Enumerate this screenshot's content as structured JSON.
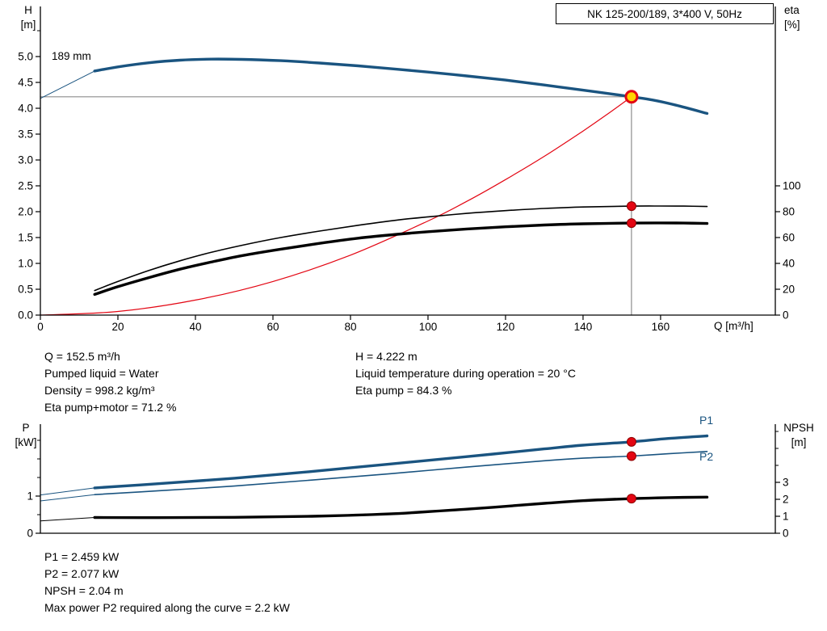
{
  "header": {
    "title": "NK 125-200/189, 3*400 V, 50Hz"
  },
  "labels": {
    "h_title": [
      "H",
      "[m]"
    ],
    "eta_title": [
      "eta",
      "[%]"
    ],
    "q_axis": "Q [m³/h]",
    "p_title": [
      "P",
      "[kW]"
    ],
    "npsh_title": [
      "NPSH",
      "[m]"
    ],
    "impeller": "189 mm",
    "p1": "P1",
    "p2": "P2"
  },
  "info": {
    "col_left": [
      "Q = 152.5 m³/h",
      "Pumped liquid = Water",
      "Density = 998.2 kg/m³",
      "Eta pump+motor = 71.2 %"
    ],
    "col_right": [
      "H = 4.222 m",
      "Liquid temperature during operation = 20 °C",
      "Eta pump = 84.3 %"
    ],
    "bottom": [
      "P1 = 2.459 kW",
      "P2 = 2.077 kW",
      "NPSH = 2.04 m",
      "Max power P2 required along the curve = 2.2 kW"
    ]
  },
  "colors": {
    "curve_blue": "#1A5480",
    "curve_black": "#000000",
    "system_red": "#E30613",
    "marker_red": "#E30613",
    "marker_red_edge": "#8E0000",
    "duty_yellow": "#FFD400",
    "crosshair_gray": "#8C8C8C",
    "axis_black": "#000000"
  },
  "chart_data": [
    {
      "id": "head",
      "type": "line",
      "title": "NK 125-200/189, 3*400 V, 50Hz",
      "x_axis": {
        "label": "Q [m³/h]",
        "min": 0,
        "max": 189.6,
        "ticks": [
          0,
          20,
          40,
          60,
          80,
          100,
          120,
          140,
          160
        ],
        "tick_labels": [
          "0",
          "20",
          "40",
          "60",
          "80",
          "100",
          "120",
          "140",
          "160"
        ]
      },
      "y_left": {
        "label": "H [m]",
        "axis": "H",
        "min": 0,
        "max": 5.97,
        "ticks_values": [
          0,
          0.5,
          1,
          1.5,
          2,
          2.5,
          3,
          3.5,
          4,
          4.5,
          5
        ],
        "ticks_labels": [
          "0.0",
          "0.5",
          "1.0",
          "1.5",
          "2.0",
          "2.5",
          "3.0",
          "3.5",
          "4.0",
          "4.5",
          "5.0"
        ],
        "minor": [
          5.5
        ]
      },
      "y_right": {
        "label": "eta [%]",
        "axis": "eta",
        "min": 0,
        "max": 100,
        "ticks_values": [
          0,
          20,
          40,
          60,
          80,
          100
        ],
        "ticks_labels": [
          "0",
          "20",
          "40",
          "60",
          "80",
          "100"
        ],
        "minor": []
      },
      "series": [
        {
          "name": "crosshair-horizontal",
          "axis": "H",
          "color": "#8C8C8C",
          "width": 1.2,
          "straight": true,
          "points": [
            [
              0,
              4.222
            ],
            [
              152.5,
              4.222
            ]
          ]
        },
        {
          "name": "crosshair-vertical",
          "axis": "H",
          "color": "#8C8C8C",
          "width": 1.2,
          "straight": true,
          "points": [
            [
              152.5,
              0
            ],
            [
              152.5,
              4.222
            ]
          ]
        },
        {
          "name": "system-curve",
          "axis": "H",
          "color": "#E30613",
          "width": 1.2,
          "points": [
            [
              0,
              0
            ],
            [
              20,
              0.07
            ],
            [
              40,
              0.29
            ],
            [
              60,
              0.65
            ],
            [
              80,
              1.16
            ],
            [
              100,
              1.82
            ],
            [
              110,
              2.2
            ],
            [
              120,
              2.62
            ],
            [
              130,
              3.07
            ],
            [
              140,
              3.56
            ],
            [
              146,
              3.87
            ],
            [
              152.5,
              4.222
            ]
          ]
        },
        {
          "name": "eta-pump",
          "axis": "eta",
          "color": "#000000",
          "width": 1.6,
          "points": [
            [
              14,
              19
            ],
            [
              20,
              26
            ],
            [
              28,
              34.5
            ],
            [
              36,
              42
            ],
            [
              44,
              48.5
            ],
            [
              52,
              54
            ],
            [
              62,
              60
            ],
            [
              72,
              65
            ],
            [
              82,
              69.5
            ],
            [
              92,
              73.5
            ],
            [
              100,
              76
            ],
            [
              110,
              78.7
            ],
            [
              120,
              80.8
            ],
            [
              130,
              82.5
            ],
            [
              140,
              83.6
            ],
            [
              152.5,
              84.3
            ],
            [
              160,
              84.4
            ],
            [
              166,
              84.3
            ],
            [
              172,
              84
            ]
          ]
        },
        {
          "name": "eta-pump-motor",
          "axis": "eta",
          "color": "#000000",
          "width": 3.4,
          "points": [
            [
              14,
              16
            ],
            [
              20,
              22
            ],
            [
              28,
              29
            ],
            [
              36,
              35.5
            ],
            [
              44,
              41
            ],
            [
              52,
              46
            ],
            [
              62,
              51
            ],
            [
              72,
              55.5
            ],
            [
              82,
              59.5
            ],
            [
              92,
              62.5
            ],
            [
              100,
              64.5
            ],
            [
              110,
              66.6
            ],
            [
              120,
              68.3
            ],
            [
              130,
              69.7
            ],
            [
              140,
              70.6
            ],
            [
              152.5,
              71.2
            ],
            [
              160,
              71.3
            ],
            [
              166,
              71.2
            ],
            [
              172,
              70.9
            ]
          ]
        },
        {
          "name": "head-leader",
          "axis": "H",
          "color": "#1A5480",
          "width": 1,
          "straight": true,
          "points": [
            [
              0,
              4.19
            ],
            [
              14,
              4.72
            ]
          ]
        },
        {
          "name": "head-curve",
          "axis": "H",
          "color": "#1A5480",
          "width": 3.4,
          "points": [
            [
              14,
              4.72
            ],
            [
              20,
              4.8
            ],
            [
              28,
              4.88
            ],
            [
              36,
              4.93
            ],
            [
              44,
              4.95
            ],
            [
              52,
              4.945
            ],
            [
              62,
              4.92
            ],
            [
              72,
              4.875
            ],
            [
              82,
              4.82
            ],
            [
              92,
              4.755
            ],
            [
              100,
              4.7
            ],
            [
              110,
              4.625
            ],
            [
              120,
              4.545
            ],
            [
              130,
              4.45
            ],
            [
              140,
              4.35
            ],
            [
              146,
              4.29
            ],
            [
              152.5,
              4.222
            ],
            [
              158,
              4.16
            ],
            [
              164,
              4.06
            ],
            [
              172,
              3.9
            ]
          ]
        }
      ],
      "markers": [
        {
          "name": "duty-point",
          "axis": "H",
          "x": 152.5,
          "value": 4.222,
          "style": "duty"
        },
        {
          "name": "eta-pump-point",
          "axis": "eta",
          "x": 152.5,
          "value": 84.3,
          "style": "dot"
        },
        {
          "name": "eta-pump-motor-point",
          "axis": "eta",
          "x": 152.5,
          "value": 71.2,
          "style": "dot"
        }
      ]
    },
    {
      "id": "power",
      "type": "line",
      "title": "Power and NPSH curves",
      "x_axis": {
        "label": "",
        "min": 0,
        "max": 189.6,
        "ticks": [],
        "tick_labels": []
      },
      "y_left": {
        "label": "P [kW]",
        "axis": "P",
        "min": 0,
        "max": 2.93,
        "ticks_values": [
          0,
          1
        ],
        "ticks_labels": [
          "0",
          "1"
        ],
        "minor": [
          0.5,
          1.5,
          2,
          2.5
        ]
      },
      "y_right": {
        "label": "NPSH [m]",
        "axis": "NPSH",
        "min": 0,
        "max": 6.4,
        "ticks_values": [
          0,
          1,
          2,
          3
        ],
        "ticks_labels": [
          "0",
          "1",
          "2",
          "3"
        ],
        "minor": [
          4,
          5,
          6
        ]
      },
      "series": [
        {
          "name": "npsh-leader",
          "axis": "NPSH",
          "color": "#000000",
          "width": 1,
          "straight": true,
          "points": [
            [
              0,
              0.73
            ],
            [
              14,
              0.93
            ]
          ]
        },
        {
          "name": "npsh-curve",
          "axis": "NPSH",
          "color": "#000000",
          "width": 3.4,
          "points": [
            [
              14,
              0.93
            ],
            [
              30,
              0.92
            ],
            [
              50,
              0.94
            ],
            [
              70,
              1.0
            ],
            [
              90,
              1.14
            ],
            [
              110,
              1.42
            ],
            [
              130,
              1.76
            ],
            [
              140,
              1.92
            ],
            [
              152.5,
              2.04
            ],
            [
              162,
              2.1
            ],
            [
              172,
              2.13
            ]
          ]
        },
        {
          "name": "p2-leader",
          "axis": "P",
          "color": "#1A5480",
          "width": 1,
          "straight": true,
          "points": [
            [
              0,
              0.87
            ],
            [
              14,
              1.04
            ]
          ]
        },
        {
          "name": "p2-curve",
          "axis": "P",
          "color": "#1A5480",
          "width": 1.6,
          "points": [
            [
              14,
              1.04
            ],
            [
              30,
              1.14
            ],
            [
              50,
              1.27
            ],
            [
              70,
              1.43
            ],
            [
              90,
              1.6
            ],
            [
              110,
              1.78
            ],
            [
              130,
              1.95
            ],
            [
              140,
              2.02
            ],
            [
              152.5,
              2.077
            ],
            [
              162,
              2.14
            ],
            [
              172,
              2.2
            ]
          ]
        },
        {
          "name": "p1-leader",
          "axis": "P",
          "color": "#1A5480",
          "width": 1,
          "straight": true,
          "points": [
            [
              0,
              1.03
            ],
            [
              14,
              1.22
            ]
          ]
        },
        {
          "name": "p1-curve",
          "axis": "P",
          "color": "#1A5480",
          "width": 3.4,
          "points": [
            [
              14,
              1.22
            ],
            [
              30,
              1.33
            ],
            [
              50,
              1.48
            ],
            [
              70,
              1.66
            ],
            [
              90,
              1.86
            ],
            [
              110,
              2.06
            ],
            [
              130,
              2.27
            ],
            [
              140,
              2.37
            ],
            [
              152.5,
              2.459
            ],
            [
              162,
              2.55
            ],
            [
              172,
              2.62
            ]
          ]
        }
      ],
      "markers": [
        {
          "name": "p1-point",
          "axis": "P",
          "x": 152.5,
          "value": 2.459,
          "style": "dot"
        },
        {
          "name": "p2-point",
          "axis": "P",
          "x": 152.5,
          "value": 2.077,
          "style": "dot"
        },
        {
          "name": "npsh-point",
          "axis": "NPSH",
          "x": 152.5,
          "value": 2.04,
          "style": "dot"
        }
      ]
    }
  ]
}
